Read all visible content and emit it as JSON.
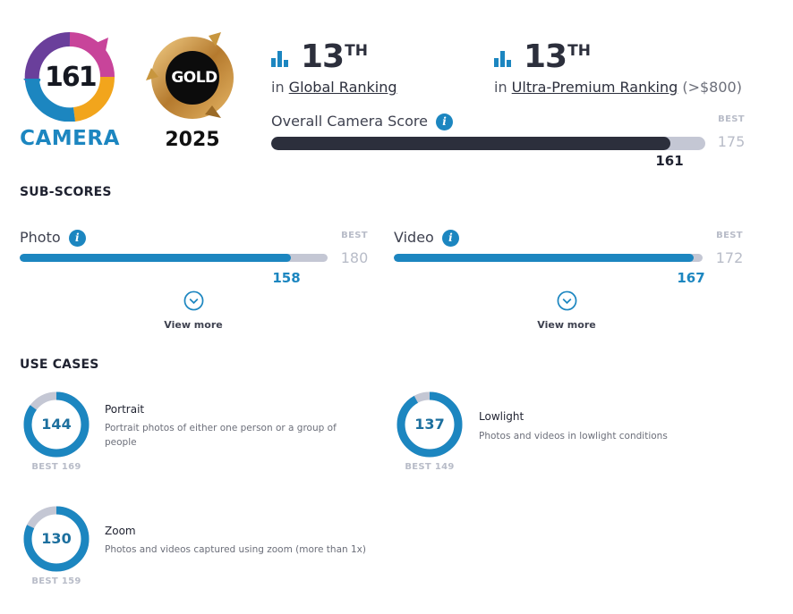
{
  "badge": {
    "camera_score": "161",
    "camera_label": "CAMERA",
    "gold_label": "GOLD",
    "gold_year": "2025"
  },
  "rankings": [
    {
      "rank": "13",
      "suffix": "TH",
      "prefix": "in ",
      "link": "Global Ranking",
      "extra": ""
    },
    {
      "rank": "13",
      "suffix": "TH",
      "prefix": "in ",
      "link": "Ultra-Premium Ranking",
      "extra": " (>$800)"
    }
  ],
  "overall": {
    "label": "Overall Camera Score",
    "best_label": "BEST",
    "best_value": "175",
    "score": "161",
    "fraction": 0.92
  },
  "subscores": {
    "title": "SUB-SCORES",
    "items": [
      {
        "label": "Photo",
        "best_label": "BEST",
        "best_value": "180",
        "score": "158",
        "fraction": 0.88,
        "view_more": "View more"
      },
      {
        "label": "Video",
        "best_label": "BEST",
        "best_value": "172",
        "score": "167",
        "fraction": 0.97,
        "view_more": "View more"
      }
    ]
  },
  "use_cases": {
    "title": "USE CASES",
    "items": [
      {
        "score": "144",
        "best": "BEST 169",
        "fraction": 0.85,
        "title": "Portrait",
        "desc": "Portrait photos of either one person or a group of people"
      },
      {
        "score": "137",
        "best": "BEST 149",
        "fraction": 0.92,
        "title": "Lowlight",
        "desc": "Photos and videos in lowlight conditions"
      },
      {
        "score": "130",
        "best": "BEST 159",
        "fraction": 0.82,
        "title": "Zoom",
        "desc": "Photos and videos captured using zoom (more than 1x)"
      }
    ]
  },
  "colors": {
    "accent_blue": "#1c86c0",
    "dark_bar": "#2c2f3c",
    "track": "#c4c7d4",
    "gold": "#c8963e"
  }
}
